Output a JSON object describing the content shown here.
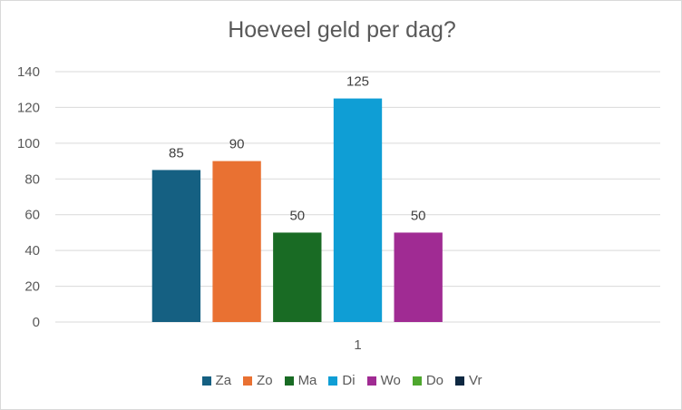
{
  "chart_data": {
    "type": "bar",
    "title": "Hoeveel geld per dag?",
    "categories": [
      "1"
    ],
    "series": [
      {
        "name": "Za",
        "values": [
          85
        ],
        "color": "#156082"
      },
      {
        "name": "Zo",
        "values": [
          90
        ],
        "color": "#E97132"
      },
      {
        "name": "Ma",
        "values": [
          50
        ],
        "color": "#196B24"
      },
      {
        "name": "Di",
        "values": [
          125
        ],
        "color": "#0F9ED5"
      },
      {
        "name": "Wo",
        "values": [
          50
        ],
        "color": "#A02B93"
      },
      {
        "name": "Do",
        "values": [
          null
        ],
        "color": "#4EA72E"
      },
      {
        "name": "Vr",
        "values": [
          null
        ],
        "color": "#0E2841"
      }
    ],
    "y_ticks": [
      0,
      20,
      40,
      60,
      80,
      100,
      120,
      140
    ],
    "ylim": [
      0,
      140
    ],
    "xlabel": "",
    "ylabel": "",
    "grid": true,
    "legend_position": "bottom",
    "data_labels": true
  }
}
